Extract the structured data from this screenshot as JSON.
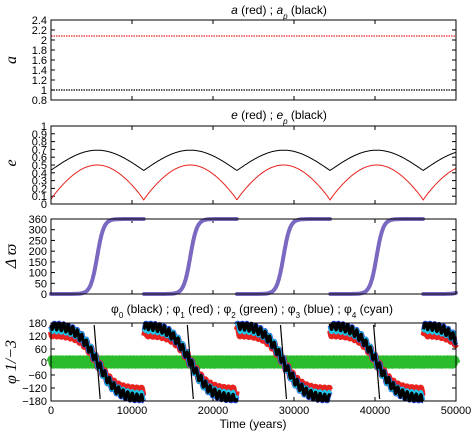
{
  "chart_data": [
    {
      "type": "scatter",
      "title": "a (red) ; a_p (black)",
      "title_parts": [
        "a",
        " (red) ; ",
        "a",
        "p",
        " (black)"
      ],
      "ylabel": "a",
      "ylim": [
        0.8,
        2.4
      ],
      "yticks": [
        "2.4",
        "2.2",
        "2",
        "1.8",
        "1.6",
        "1.4",
        "1.2",
        "1",
        "0.8"
      ],
      "xlim": [
        0,
        50000
      ],
      "series": [
        {
          "color": "#e8231f",
          "x": [
            0,
            10000,
            20000,
            30000,
            40000,
            50000
          ],
          "values": [
            2.08,
            2.08,
            2.08,
            2.08,
            2.08,
            2.08
          ]
        },
        {
          "color": "#000000",
          "x": [
            0,
            10000,
            20000,
            30000,
            40000,
            50000
          ],
          "values": [
            1.0,
            1.0,
            1.0,
            1.0,
            1.0,
            1.0
          ]
        }
      ]
    },
    {
      "type": "line",
      "title": "e (red) ; e_p (black)",
      "title_parts": [
        "e",
        " (red) ; ",
        "e",
        "p",
        " (black)"
      ],
      "ylabel": "e",
      "ylim": [
        0,
        1
      ],
      "yticks": [
        "1",
        "0.9",
        "0.8",
        "0.7",
        "0.6",
        "0.5",
        "0.4",
        "0.3",
        "0.2",
        "0.1",
        "0"
      ],
      "xlim": [
        0,
        50000
      ],
      "period": 11500,
      "min_times": [
        5700,
        17200,
        28700,
        40200
      ],
      "series": [
        {
          "color": "#000000",
          "min": 0.43,
          "max": 0.69
        },
        {
          "color": "#e8231f",
          "min": 0.05,
          "max": 0.5
        }
      ]
    },
    {
      "type": "scatter",
      "ylabel": "Δ ϖ",
      "ylim": [
        0,
        360
      ],
      "yticks": [
        "360",
        "300",
        "250",
        "200",
        "150",
        "100",
        "50",
        "0"
      ],
      "xlim": [
        0,
        50000
      ],
      "period": 11500,
      "center_times": [
        5700,
        17200,
        28700,
        40200
      ],
      "color": "#7b68c0"
    },
    {
      "type": "scatter",
      "title": "φ0 (black) ; φ1 (red) ; φ2 (green) ; φ3 (blue) ; φ4 (cyan)",
      "title_parts": [
        [
          "φ",
          "0",
          " (black) ; "
        ],
        [
          "φ",
          "1",
          " (red) ; "
        ],
        [
          "φ",
          "2",
          " (green) ; "
        ],
        [
          "φ",
          "3",
          " (blue) ; "
        ],
        [
          "φ",
          "4",
          " (cyan)"
        ]
      ],
      "ylabel": "φ 1/−3",
      "ylim": [
        -180,
        180
      ],
      "yticks": [
        "180",
        "120",
        "60",
        "0",
        "−60",
        "−120",
        "−180"
      ],
      "xlim": [
        0,
        50000
      ],
      "xticks": [
        "0",
        "10000",
        "20000",
        "30000",
        "40000",
        "50000"
      ],
      "xlabel": "Time (years)",
      "period": 11500,
      "center_times": [
        5700,
        17200,
        28700,
        40200
      ],
      "series": [
        {
          "name": "φ0",
          "color": "#000000"
        },
        {
          "name": "φ1",
          "color": "#e8231f"
        },
        {
          "name": "φ2",
          "color": "#1fb81f"
        },
        {
          "name": "φ3",
          "color": "#1f3fe8"
        },
        {
          "name": "φ4",
          "color": "#1fc8e8"
        }
      ]
    }
  ]
}
